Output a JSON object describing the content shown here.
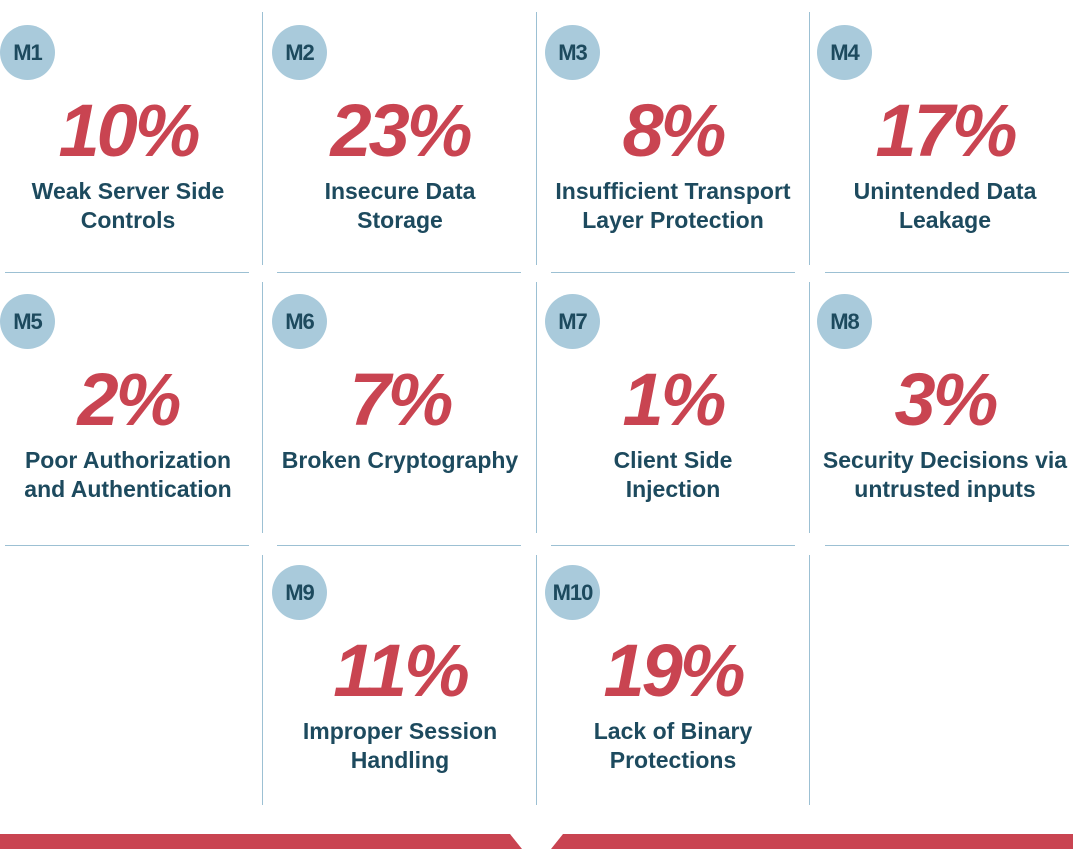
{
  "tiles": [
    {
      "code": "M1",
      "percent": "10%",
      "description": [
        "Weak Server Side",
        "Controls"
      ]
    },
    {
      "code": "M2",
      "percent": "23%",
      "description": [
        "Insecure Data",
        "Storage"
      ]
    },
    {
      "code": "M3",
      "percent": "8%",
      "description": [
        "Insufficient Transport",
        "Layer Protection"
      ]
    },
    {
      "code": "M4",
      "percent": "17%",
      "description": [
        "Unintended Data",
        "Leakage"
      ]
    },
    {
      "code": "M5",
      "percent": "2%",
      "description": [
        "Poor Authorization",
        "and Authentication"
      ]
    },
    {
      "code": "M6",
      "percent": "7%",
      "description": [
        "Broken Cryptography"
      ]
    },
    {
      "code": "M7",
      "percent": "1%",
      "description": [
        "Client Side",
        "Injection"
      ]
    },
    {
      "code": "M8",
      "percent": "3%",
      "description": [
        "Security Decisions via",
        "untrusted inputs"
      ]
    },
    {
      "code": "M9",
      "percent": "11%",
      "description": [
        "Improper Session",
        "Handling"
      ]
    },
    {
      "code": "M10",
      "percent": "19%",
      "description": [
        "Lack of Binary",
        "Protections"
      ]
    }
  ]
}
